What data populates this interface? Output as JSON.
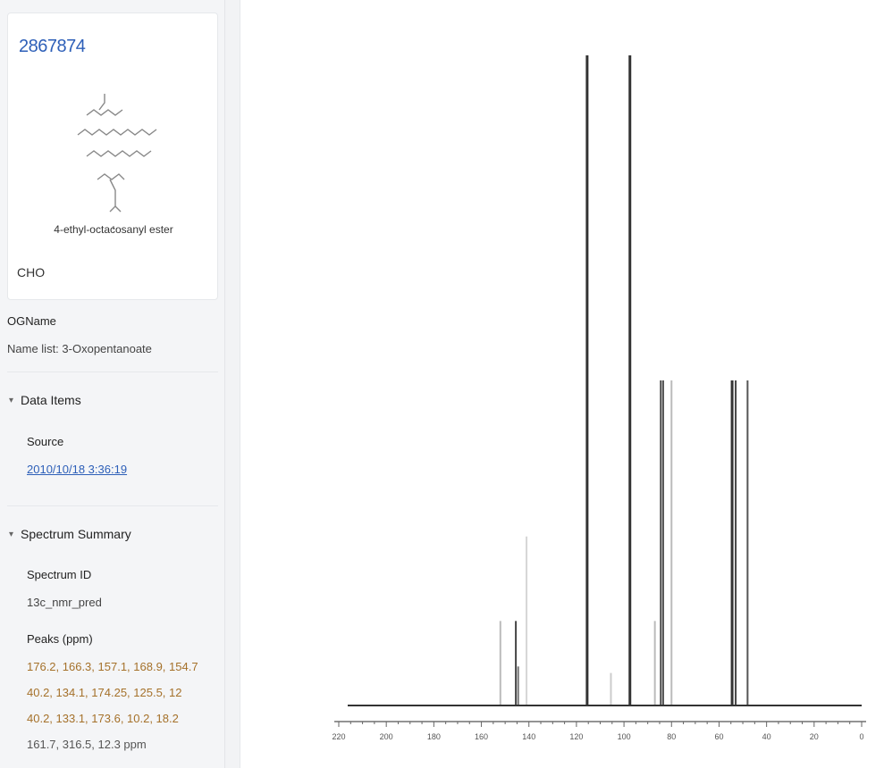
{
  "compound": {
    "id": "2867874",
    "name": "4-ethyl-octacosanyl ester",
    "formula_parts": [
      "C",
      "",
      "H",
      "",
      "O",
      ""
    ]
  },
  "metadata": {
    "owner_label": "OGName",
    "name_label": "Name list:",
    "name_value": "3-Oxopentanoate"
  },
  "data_source": {
    "header": "Data Items",
    "label": "Source",
    "link_text": "2010/10/18 3:36:19"
  },
  "spectrum_summary": {
    "header": "Spectrum Summary",
    "id_label": "Spectrum ID",
    "id_value": "13c_nmr_pred",
    "peaks_label": "Peaks (ppm)",
    "peak_lines": [
      "176.2, 166.3, 157.1, 168.9, 154.7",
      "40.2, 134.1, 174.25, 125.5, 12",
      "40.2, 133.1, 173.6, 10.2, 18.2",
      "161.7, 316.5, 12.3 ppm"
    ]
  },
  "chart_data": {
    "type": "bar",
    "title": "",
    "xlabel": "",
    "ylabel": "",
    "x_reversed": true,
    "xlim": [
      0,
      220
    ],
    "ylim": [
      0,
      1
    ],
    "x_tick_labels": [
      "220",
      "200",
      "180",
      "160",
      "140",
      "120",
      "100",
      "80",
      "60",
      "40",
      "20",
      "0"
    ],
    "x_tick_values": [
      220,
      200,
      180,
      160,
      140,
      120,
      100,
      80,
      60,
      40,
      20,
      0
    ],
    "peaks": [
      {
        "shift": 152.0,
        "intensity": 0.13,
        "color": "#bbbbbb"
      },
      {
        "shift": 145.5,
        "intensity": 0.13,
        "color": "#444444"
      },
      {
        "shift": 144.5,
        "intensity": 0.06,
        "color": "#777777"
      },
      {
        "shift": 141.0,
        "intensity": 0.26,
        "color": "#d6d6d6"
      },
      {
        "shift": 115.5,
        "intensity": 1.0,
        "color": "#333333"
      },
      {
        "shift": 105.5,
        "intensity": 0.05,
        "color": "#cccccc"
      },
      {
        "shift": 97.5,
        "intensity": 1.0,
        "color": "#333333"
      },
      {
        "shift": 87.0,
        "intensity": 0.13,
        "color": "#bbbbbb"
      },
      {
        "shift": 84.5,
        "intensity": 0.5,
        "color": "#444444"
      },
      {
        "shift": 83.5,
        "intensity": 0.5,
        "color": "#555555"
      },
      {
        "shift": 80.0,
        "intensity": 0.5,
        "color": "#bbbbbb"
      },
      {
        "shift": 54.5,
        "intensity": 0.5,
        "color": "#333333"
      },
      {
        "shift": 53.0,
        "intensity": 0.5,
        "color": "#444444"
      },
      {
        "shift": 48.0,
        "intensity": 0.5,
        "color": "#555555"
      }
    ],
    "baseline_color": "#333333"
  }
}
